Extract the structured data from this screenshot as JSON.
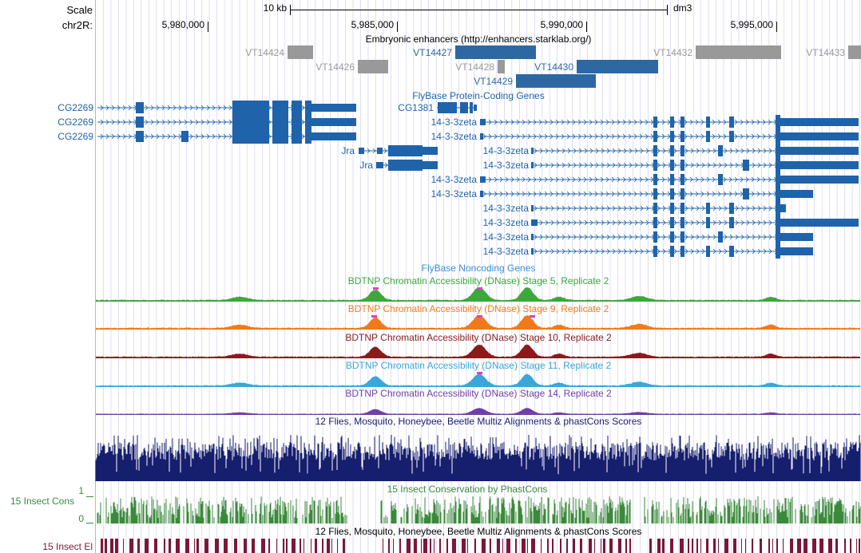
{
  "scale": {
    "label": "Scale",
    "bar_label": "10 kb",
    "assembly": "dm3"
  },
  "position": {
    "chrom_label": "chr2R:",
    "ticks": [
      "5,980,000",
      "5,985,000",
      "5,990,000",
      "5,995,000"
    ]
  },
  "tracks": {
    "enhancers": {
      "title": "Embryonic enhancers (http://enhancers.starklab.org/)",
      "items": [
        {
          "name": "VT14424",
          "color": "#999999"
        },
        {
          "name": "VT14427",
          "color": "#2e68a3"
        },
        {
          "name": "VT14432",
          "color": "#999999"
        },
        {
          "name": "VT14433",
          "color": "#999999"
        },
        {
          "name": "VT14426",
          "color": "#999999"
        },
        {
          "name": "VT14428",
          "color": "#999999"
        },
        {
          "name": "VT14430",
          "color": "#2e68a3"
        },
        {
          "name": "VT14429",
          "color": "#2e68a3"
        }
      ]
    },
    "protein_coding": {
      "title": "FlyBase Protein-Coding Genes",
      "color": "#1f63ab",
      "labels": [
        "CG2269",
        "CG2269",
        "CG2269",
        "CG1381",
        "Jra",
        "Jra",
        "14-3-3zeta",
        "14-3-3zeta",
        "14-3-3zeta",
        "14-3-3zeta",
        "14-3-3zeta",
        "14-3-3zeta",
        "14-3-3zeta",
        "14-3-3zeta",
        "14-3-3zeta",
        "14-3-3zeta",
        "14-3-3zeta"
      ]
    },
    "noncoding": {
      "title": "FlyBase Noncoding Genes",
      "color": "#3b8fd6"
    },
    "dnase": [
      {
        "title": "BDTNP Chromatin Accessibility (DNase) Stage 5, Replicate 2",
        "color": "#3aa83a"
      },
      {
        "title": "BDTNP Chromatin Accessibility (DNase) Stage 9, Replicate 2",
        "color": "#f07a1a"
      },
      {
        "title": "BDTNP Chromatin Accessibility (DNase) Stage 10, Replicate 2",
        "color": "#8b1a1a"
      },
      {
        "title": "BDTNP Chromatin Accessibility (DNase) Stage 11, Replicate 2",
        "color": "#3aa6d9"
      },
      {
        "title": "BDTNP Chromatin Accessibility (DNase) Stage 14, Replicate 2",
        "color": "#7040a8"
      }
    ],
    "multiz": {
      "title": "12 Flies, Mosquito, Honeybee, Beetle Multiz Alignments & phastCons Scores",
      "color": "#161e6e"
    },
    "phastcons": {
      "title": "15 Insect Conservation by PhastCons",
      "side_label": "15 Insect Cons",
      "axis_max": "1",
      "axis_min": "0",
      "color": "#3a8a3a"
    },
    "elements": {
      "title": "12 Flies, Mosquito, Honeybee, Beetle Multiz Alignments & phastCons Scores",
      "side_label": "15 Insect El",
      "color": "#7a1838"
    }
  },
  "colors": {
    "base_position": "#000000",
    "gridline": "#c8c8f0",
    "left_border": "#f0a0a0"
  }
}
